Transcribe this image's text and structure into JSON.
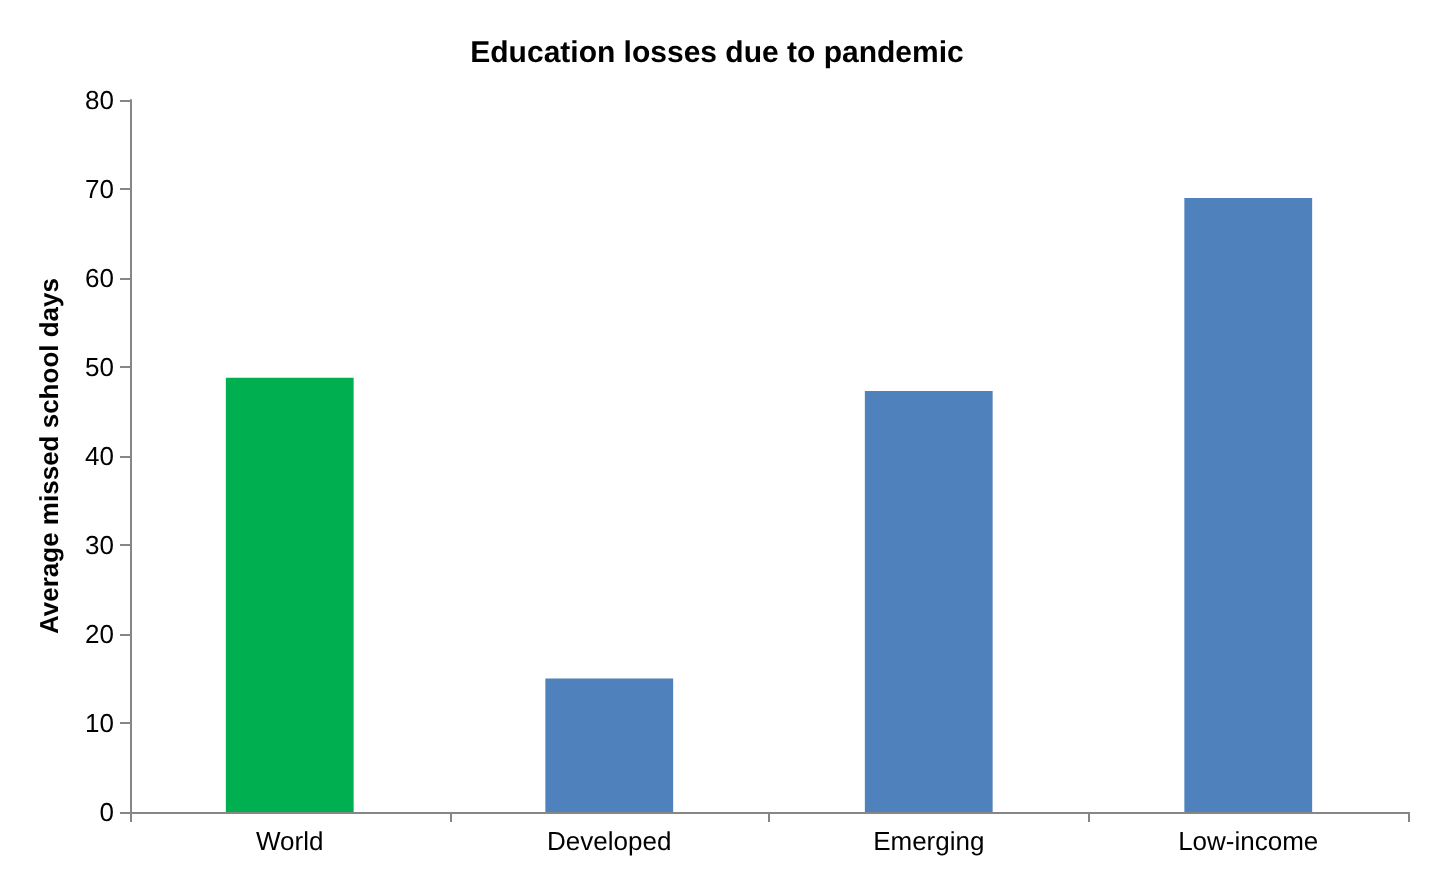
{
  "chart_data": {
    "type": "bar",
    "title": "Education losses due to pandemic",
    "ylabel": "Average missed school days",
    "categories": [
      "World",
      "Developed",
      "Emerging",
      "Low-income"
    ],
    "values": [
      48.8,
      15,
      47.3,
      69
    ],
    "colors": [
      "#00b050",
      "#4f81bd",
      "#4f81bd",
      "#4f81bd"
    ],
    "ylim": [
      0,
      80
    ],
    "yticks": [
      0,
      10,
      20,
      30,
      40,
      50,
      60,
      70,
      80
    ],
    "grid": false
  }
}
